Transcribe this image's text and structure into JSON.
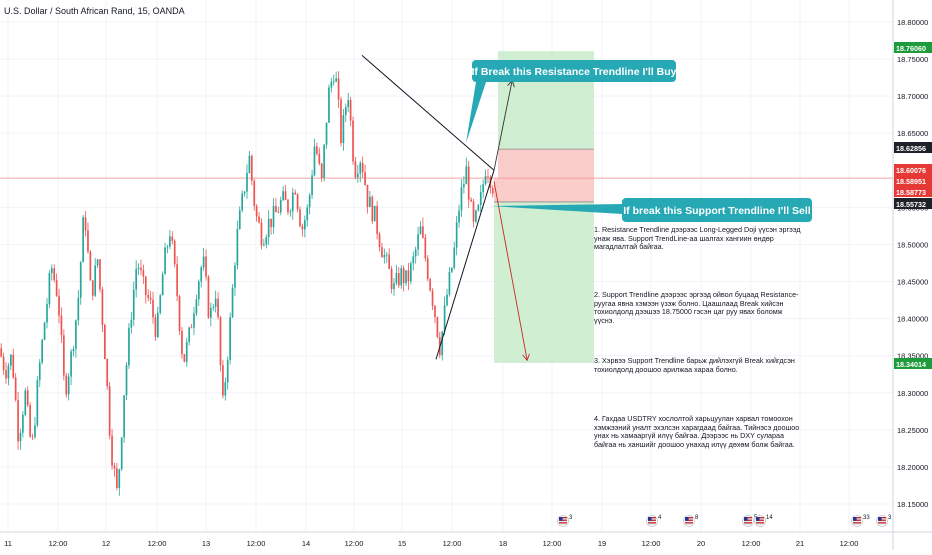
{
  "symbol_title": "U.S. Dollar / South African Rand, 15, OANDA",
  "colors": {
    "up": "#26a69a",
    "down": "#ef5350",
    "grid": "#f0f3fa",
    "axis_text": "#131722",
    "callout": "#26a9b5",
    "target_zone": "#c8ebc9",
    "stop_zone": "#f9c3c1",
    "current_line": "#f4a49f",
    "tag_green": "#1e9b3c",
    "tag_red": "#e53935",
    "tag_dark": "#1e2129",
    "arrow": "#c62828"
  },
  "callouts": {
    "buy": "If Break this Resistance Trendline I'll Buy",
    "sell": "If break this Support Trendline I'll Sell"
  },
  "notes": [
    "1. Resistance Trendline дээрээс Long-Legged Doji үүсэн эргээд унаж ява. Support TrendLine-аа шалгах хангиин өндөр магадлалтай байгаа.",
    "2. Support Trendline дээрээс эргээд ойвол буцаад Resistance-руугаа явна хэмээн үзэж болно. Цаашлаад Break хийсэн тохиолдолд дээшээ 18.75000 гэсэн цаг руу явах боломж үүснэ.",
    "3. Хэрвээ Support Trendline барьж дийлэхгүй Break хийгдсэн тохиолдолд доошоо арилжаа хараа болно.",
    "4. Гахдаа USDTRY хослолтой харьцуулан харвал томоохон хэмжээний уналт эхэлсэн харагдаад байгаа. Тийнэсэ доошоо унах нь хамааргүй илүү байгаа. Дээрээс нь DXY сулараа байгаа нь ханшийг доошоо унахад илүү дөхөм болж байгаа."
  ],
  "price_labels": [
    {
      "value": "18.76060",
      "kind": "green"
    },
    {
      "value": "18.62856",
      "kind": "dark"
    },
    {
      "value": "18.60076",
      "kind": "red"
    },
    {
      "value": "18.58951",
      "kind": "red"
    },
    {
      "value": "18.58773",
      "kind": "red"
    },
    {
      "value": "18.55732",
      "kind": "dark"
    },
    {
      "value": "18.34014",
      "kind": "green"
    }
  ],
  "event_badges": [
    {
      "icon": "us-flag-icon",
      "count": "3"
    },
    {
      "icon": "us-flag-icon",
      "count": "4"
    },
    {
      "icon": "us-flag-icon",
      "count": "8"
    },
    {
      "icon": "us-flag-icon",
      "count": "5"
    },
    {
      "icon": "us-flag-icon",
      "count": "14"
    },
    {
      "icon": "us-flag-icon",
      "count": "33"
    },
    {
      "icon": "us-flag-icon",
      "count": "3"
    }
  ],
  "chart_data": {
    "type": "candlestick",
    "title": "U.S. Dollar / South African Rand, 15, OANDA",
    "y_ticks": [
      "18.80000",
      "18.75000",
      "18.70000",
      "18.65000",
      "18.55000",
      "18.50000",
      "18.45000",
      "18.40000",
      "18.35000",
      "18.30000",
      "18.25000",
      "18.20000",
      "18.15000"
    ],
    "x_ticks": [
      "11",
      "12:00",
      "12",
      "12:00",
      "13",
      "12:00",
      "14",
      "12:00",
      "15",
      "12:00",
      "18",
      "12:00",
      "19",
      "12:00",
      "20",
      "12:00",
      "21",
      "12:00"
    ],
    "ylim": [
      18.1325,
      18.8245
    ],
    "grid": true,
    "price_path": [
      18.36,
      18.33,
      18.35,
      18.24,
      18.3,
      18.22,
      18.32,
      18.4,
      18.47,
      18.43,
      18.3,
      18.35,
      18.42,
      18.55,
      18.43,
      18.48,
      18.37,
      18.23,
      18.16,
      18.3,
      18.4,
      18.48,
      18.44,
      18.42,
      18.38,
      18.47,
      18.52,
      18.44,
      18.34,
      18.38,
      18.44,
      18.48,
      18.4,
      18.44,
      18.28,
      18.38,
      18.5,
      18.56,
      18.62,
      18.54,
      18.51,
      18.53,
      18.54,
      18.56,
      18.55,
      18.58,
      18.52,
      18.55,
      18.64,
      18.58,
      18.7,
      18.74,
      18.64,
      18.71,
      18.6,
      18.62,
      18.56,
      18.54,
      18.5,
      18.47,
      18.44,
      18.46,
      18.45,
      18.48,
      18.52,
      18.47,
      18.42,
      18.36,
      18.43,
      18.48,
      18.56,
      18.6,
      18.52,
      18.55,
      18.61,
      18.58
    ],
    "resistance_trendline": {
      "from": {
        "x": "14 12:00",
        "y": 18.755
      },
      "to": {
        "x": "15 ~17:00",
        "y": 18.6
      }
    },
    "support_trendline": {
      "from": {
        "x": "15 ~04:00",
        "y": 18.345
      },
      "to": {
        "x": "15 ~17:00",
        "y": 18.6
      }
    },
    "long_position": {
      "entry": 18.62856,
      "stop": 18.58773,
      "target": 18.7606
    },
    "short_position": {
      "entry": 18.55732,
      "stop": 18.58951,
      "target": 18.34014
    },
    "current_price": 18.58951
  }
}
